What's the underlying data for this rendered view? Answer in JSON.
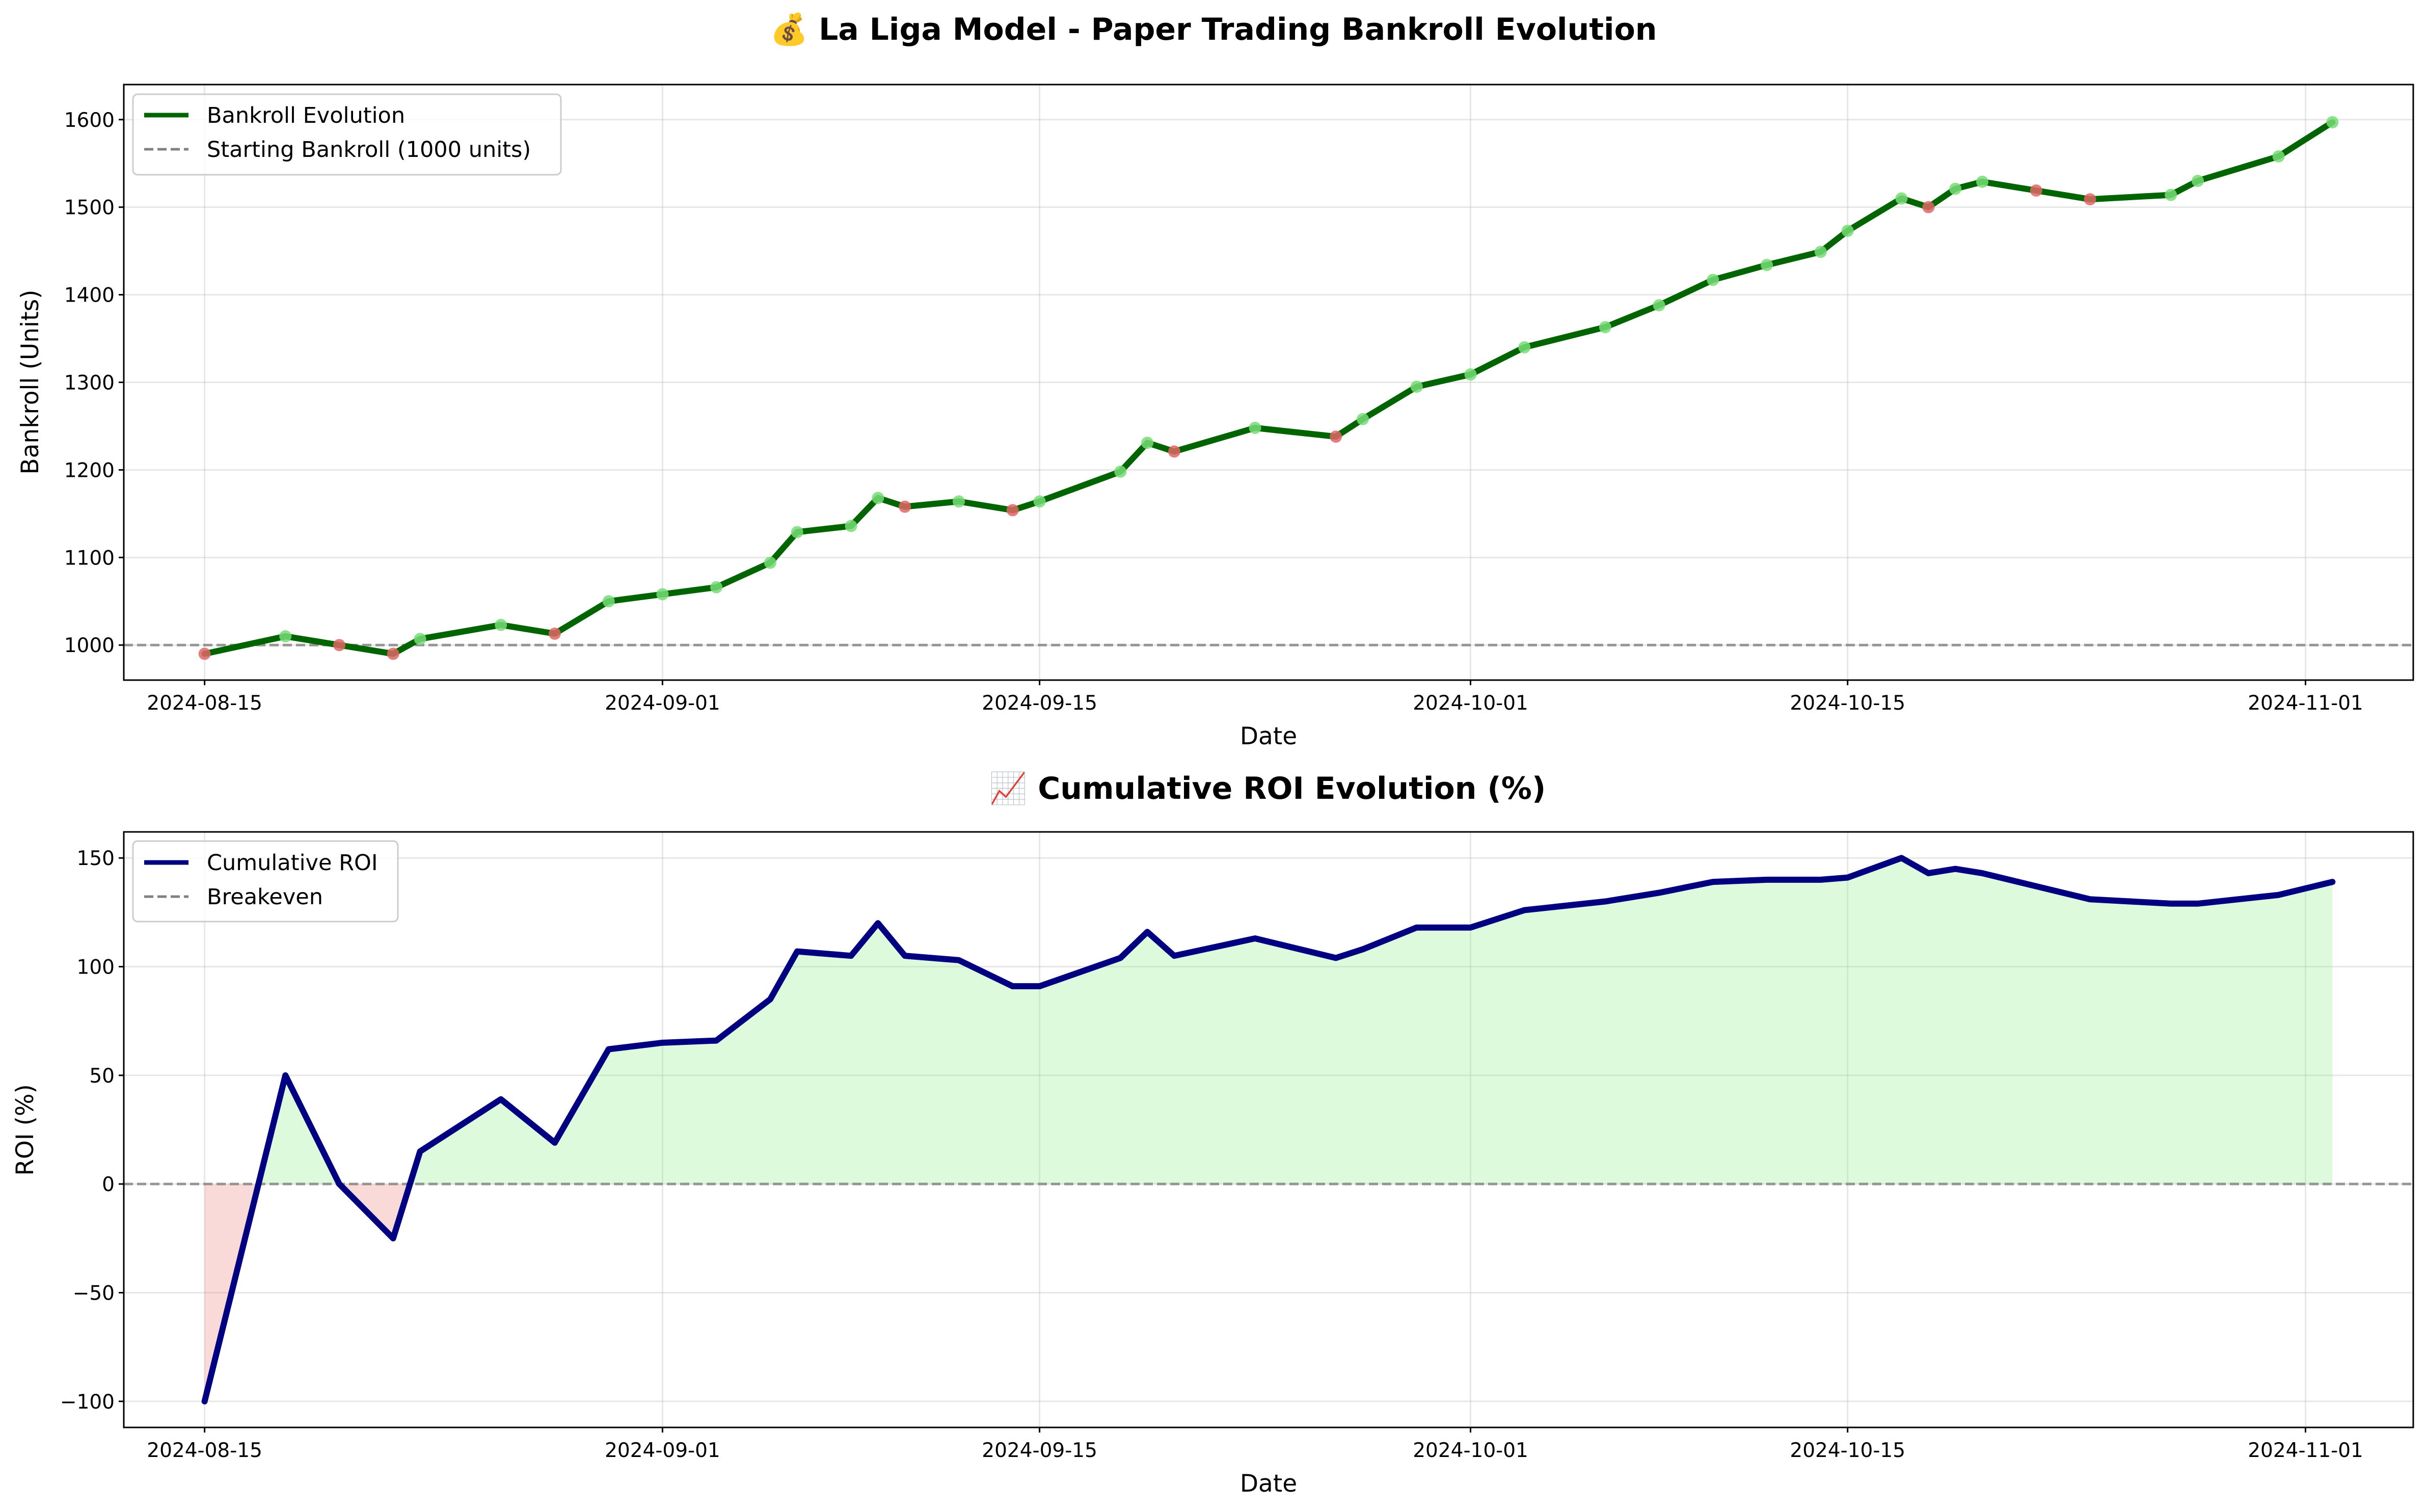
{
  "chart_data": [
    {
      "type": "line",
      "title": "💰 La Liga Model - Paper Trading Bankroll Evolution",
      "xlabel": "Date",
      "ylabel": "Bankroll (Units)",
      "ylim": [
        960,
        1640
      ],
      "yticks": [
        1000,
        1100,
        1200,
        1300,
        1400,
        1500,
        1600
      ],
      "ytick_labels": [
        "1000",
        "1100",
        "1200",
        "1300",
        "1400",
        "1500",
        "1600"
      ],
      "xlim": [
        "2024-08-12",
        "2024-11-05"
      ],
      "xticks": [
        "2024-08-15",
        "2024-09-01",
        "2024-09-15",
        "2024-10-01",
        "2024-10-15",
        "2024-11-01"
      ],
      "grid": true,
      "legend_position": "top-left",
      "series": [
        {
          "name": "Bankroll Evolution",
          "color": "#006400",
          "x": [
            "2024-08-15",
            "2024-08-18",
            "2024-08-20",
            "2024-08-22",
            "2024-08-23",
            "2024-08-26",
            "2024-08-28",
            "2024-08-30",
            "2024-09-01",
            "2024-09-03",
            "2024-09-05",
            "2024-09-06",
            "2024-09-08",
            "2024-09-09",
            "2024-09-10",
            "2024-09-12",
            "2024-09-14",
            "2024-09-15",
            "2024-09-18",
            "2024-09-19",
            "2024-09-20",
            "2024-09-23",
            "2024-09-26",
            "2024-09-27",
            "2024-09-29",
            "2024-10-01",
            "2024-10-03",
            "2024-10-06",
            "2024-10-08",
            "2024-10-10",
            "2024-10-12",
            "2024-10-14",
            "2024-10-15",
            "2024-10-17",
            "2024-10-18",
            "2024-10-19",
            "2024-10-20",
            "2024-10-22",
            "2024-10-24",
            "2024-10-27",
            "2024-10-28",
            "2024-10-31",
            "2024-11-02"
          ],
          "values": [
            990,
            1010,
            1000,
            990,
            1007,
            1023,
            1013,
            1050,
            1058,
            1066,
            1094,
            1129,
            1136,
            1168,
            1158,
            1164,
            1154,
            1164,
            1198,
            1231,
            1221,
            1248,
            1238,
            1258,
            1295,
            1309,
            1340,
            1363,
            1388,
            1417,
            1434,
            1449,
            1473,
            1510,
            1500,
            1521,
            1529,
            1519,
            1509,
            1514,
            1530,
            1558,
            1597
          ],
          "marker_colors": [
            "#e06666",
            "#77dd77",
            "#e06666",
            "#e06666",
            "#77dd77",
            "#77dd77",
            "#e06666",
            "#77dd77",
            "#77dd77",
            "#77dd77",
            "#77dd77",
            "#77dd77",
            "#77dd77",
            "#77dd77",
            "#e06666",
            "#77dd77",
            "#e06666",
            "#77dd77",
            "#77dd77",
            "#77dd77",
            "#e06666",
            "#77dd77",
            "#e06666",
            "#77dd77",
            "#77dd77",
            "#77dd77",
            "#77dd77",
            "#77dd77",
            "#77dd77",
            "#77dd77",
            "#77dd77",
            "#77dd77",
            "#77dd77",
            "#77dd77",
            "#e06666",
            "#77dd77",
            "#77dd77",
            "#e06666",
            "#e06666",
            "#77dd77",
            "#77dd77",
            "#77dd77",
            "#77dd77"
          ]
        },
        {
          "name": "Starting Bankroll (1000 units)",
          "color": "#808080",
          "style": "dashed",
          "hline": 1000
        }
      ]
    },
    {
      "type": "area",
      "title": "📈 Cumulative ROI Evolution (%)",
      "xlabel": "Date",
      "ylabel": "ROI (%)",
      "ylim": [
        -112,
        162
      ],
      "yticks": [
        -100,
        -50,
        0,
        50,
        100,
        150
      ],
      "ytick_labels": [
        "−100",
        "−50",
        "0",
        "50",
        "100",
        "150"
      ],
      "xlim": [
        "2024-08-12",
        "2024-11-05"
      ],
      "xticks": [
        "2024-08-15",
        "2024-09-01",
        "2024-09-15",
        "2024-10-01",
        "2024-10-15",
        "2024-11-01"
      ],
      "grid": true,
      "legend_position": "top-left",
      "positive_fill": "#90ee90",
      "negative_fill": "#f08080",
      "series": [
        {
          "name": "Cumulative ROI",
          "color": "#000080",
          "x": [
            "2024-08-15",
            "2024-08-18",
            "2024-08-20",
            "2024-08-22",
            "2024-08-23",
            "2024-08-26",
            "2024-08-28",
            "2024-08-30",
            "2024-09-01",
            "2024-09-03",
            "2024-09-05",
            "2024-09-06",
            "2024-09-08",
            "2024-09-09",
            "2024-09-10",
            "2024-09-12",
            "2024-09-14",
            "2024-09-15",
            "2024-09-18",
            "2024-09-19",
            "2024-09-20",
            "2024-09-23",
            "2024-09-26",
            "2024-09-27",
            "2024-09-29",
            "2024-10-01",
            "2024-10-03",
            "2024-10-06",
            "2024-10-08",
            "2024-10-10",
            "2024-10-12",
            "2024-10-14",
            "2024-10-15",
            "2024-10-17",
            "2024-10-18",
            "2024-10-19",
            "2024-10-20",
            "2024-10-22",
            "2024-10-24",
            "2024-10-27",
            "2024-10-28",
            "2024-10-31",
            "2024-11-02"
          ],
          "values": [
            -100,
            50,
            0,
            -25,
            15,
            39,
            19,
            62,
            65,
            66,
            85,
            107,
            105,
            120,
            105,
            103,
            91,
            91,
            104,
            116,
            105,
            113,
            104,
            108,
            118,
            118,
            126,
            130,
            134,
            139,
            140,
            140,
            141,
            150,
            143,
            145,
            143,
            137,
            131,
            129,
            129,
            133,
            139
          ]
        },
        {
          "name": "Breakeven",
          "color": "#808080",
          "style": "dashed",
          "hline": 0
        }
      ]
    }
  ]
}
